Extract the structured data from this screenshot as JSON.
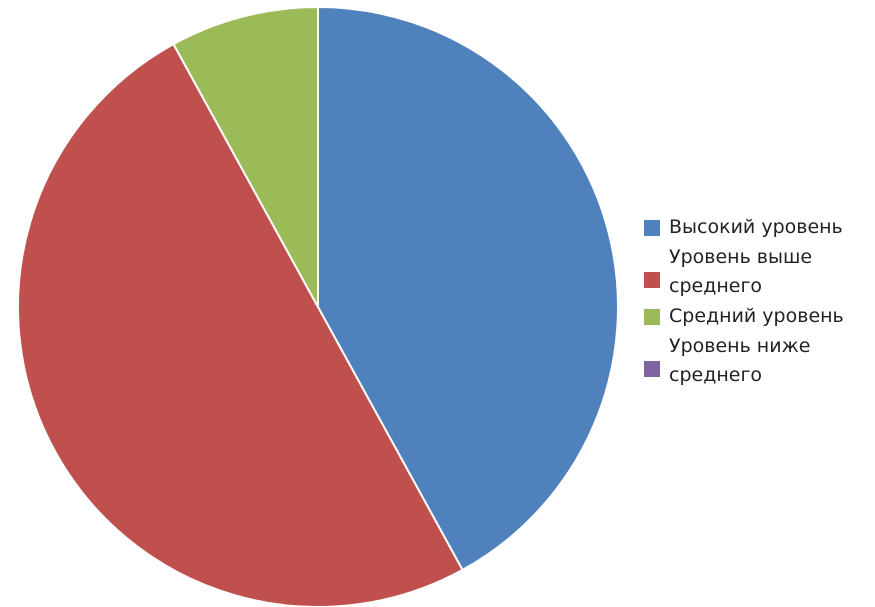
{
  "chart_data": {
    "type": "pie",
    "title": "",
    "categories": [
      "Высокий уровень",
      "Уровень выше среднего",
      "Средний уровень",
      "Уровень ниже среднего"
    ],
    "values": [
      42,
      50,
      8,
      0
    ],
    "colors": [
      "#4F81BD",
      "#C0504D",
      "#9BBB59",
      "#8064A2"
    ],
    "legend_position": "right",
    "start_angle_deg": 0
  }
}
